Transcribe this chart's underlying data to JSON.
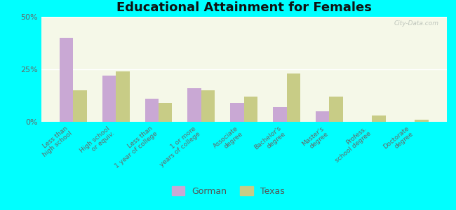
{
  "title": "Educational Attainment for Females",
  "categories": [
    "Less than\nhigh school",
    "High school\nor equiv.",
    "Less than\n1 year of college",
    "1 or more\nyears of college",
    "Associate\ndegree",
    "Bachelor's\ndegree",
    "Master's\ndegree",
    "Profess.\nschool degree",
    "Doctorate\ndegree"
  ],
  "gorman": [
    40,
    22,
    11,
    16,
    9,
    7,
    5,
    0,
    0
  ],
  "texas": [
    15,
    24,
    9,
    15,
    12,
    23,
    12,
    3,
    1
  ],
  "gorman_color": "#c9a8d4",
  "texas_color": "#c8cc86",
  "background_color": "#00ffff",
  "plot_bg": "#f5f8e8",
  "ylim": [
    0,
    50
  ],
  "yticks": [
    0,
    25,
    50
  ],
  "ytick_labels": [
    "0%",
    "25%",
    "50%"
  ],
  "watermark": "City-Data.com",
  "legend_gorman": "Gorman",
  "legend_texas": "Texas",
  "bar_width": 0.32,
  "title_fontsize": 13,
  "tick_label_fontsize": 6.5,
  "legend_fontsize": 9
}
